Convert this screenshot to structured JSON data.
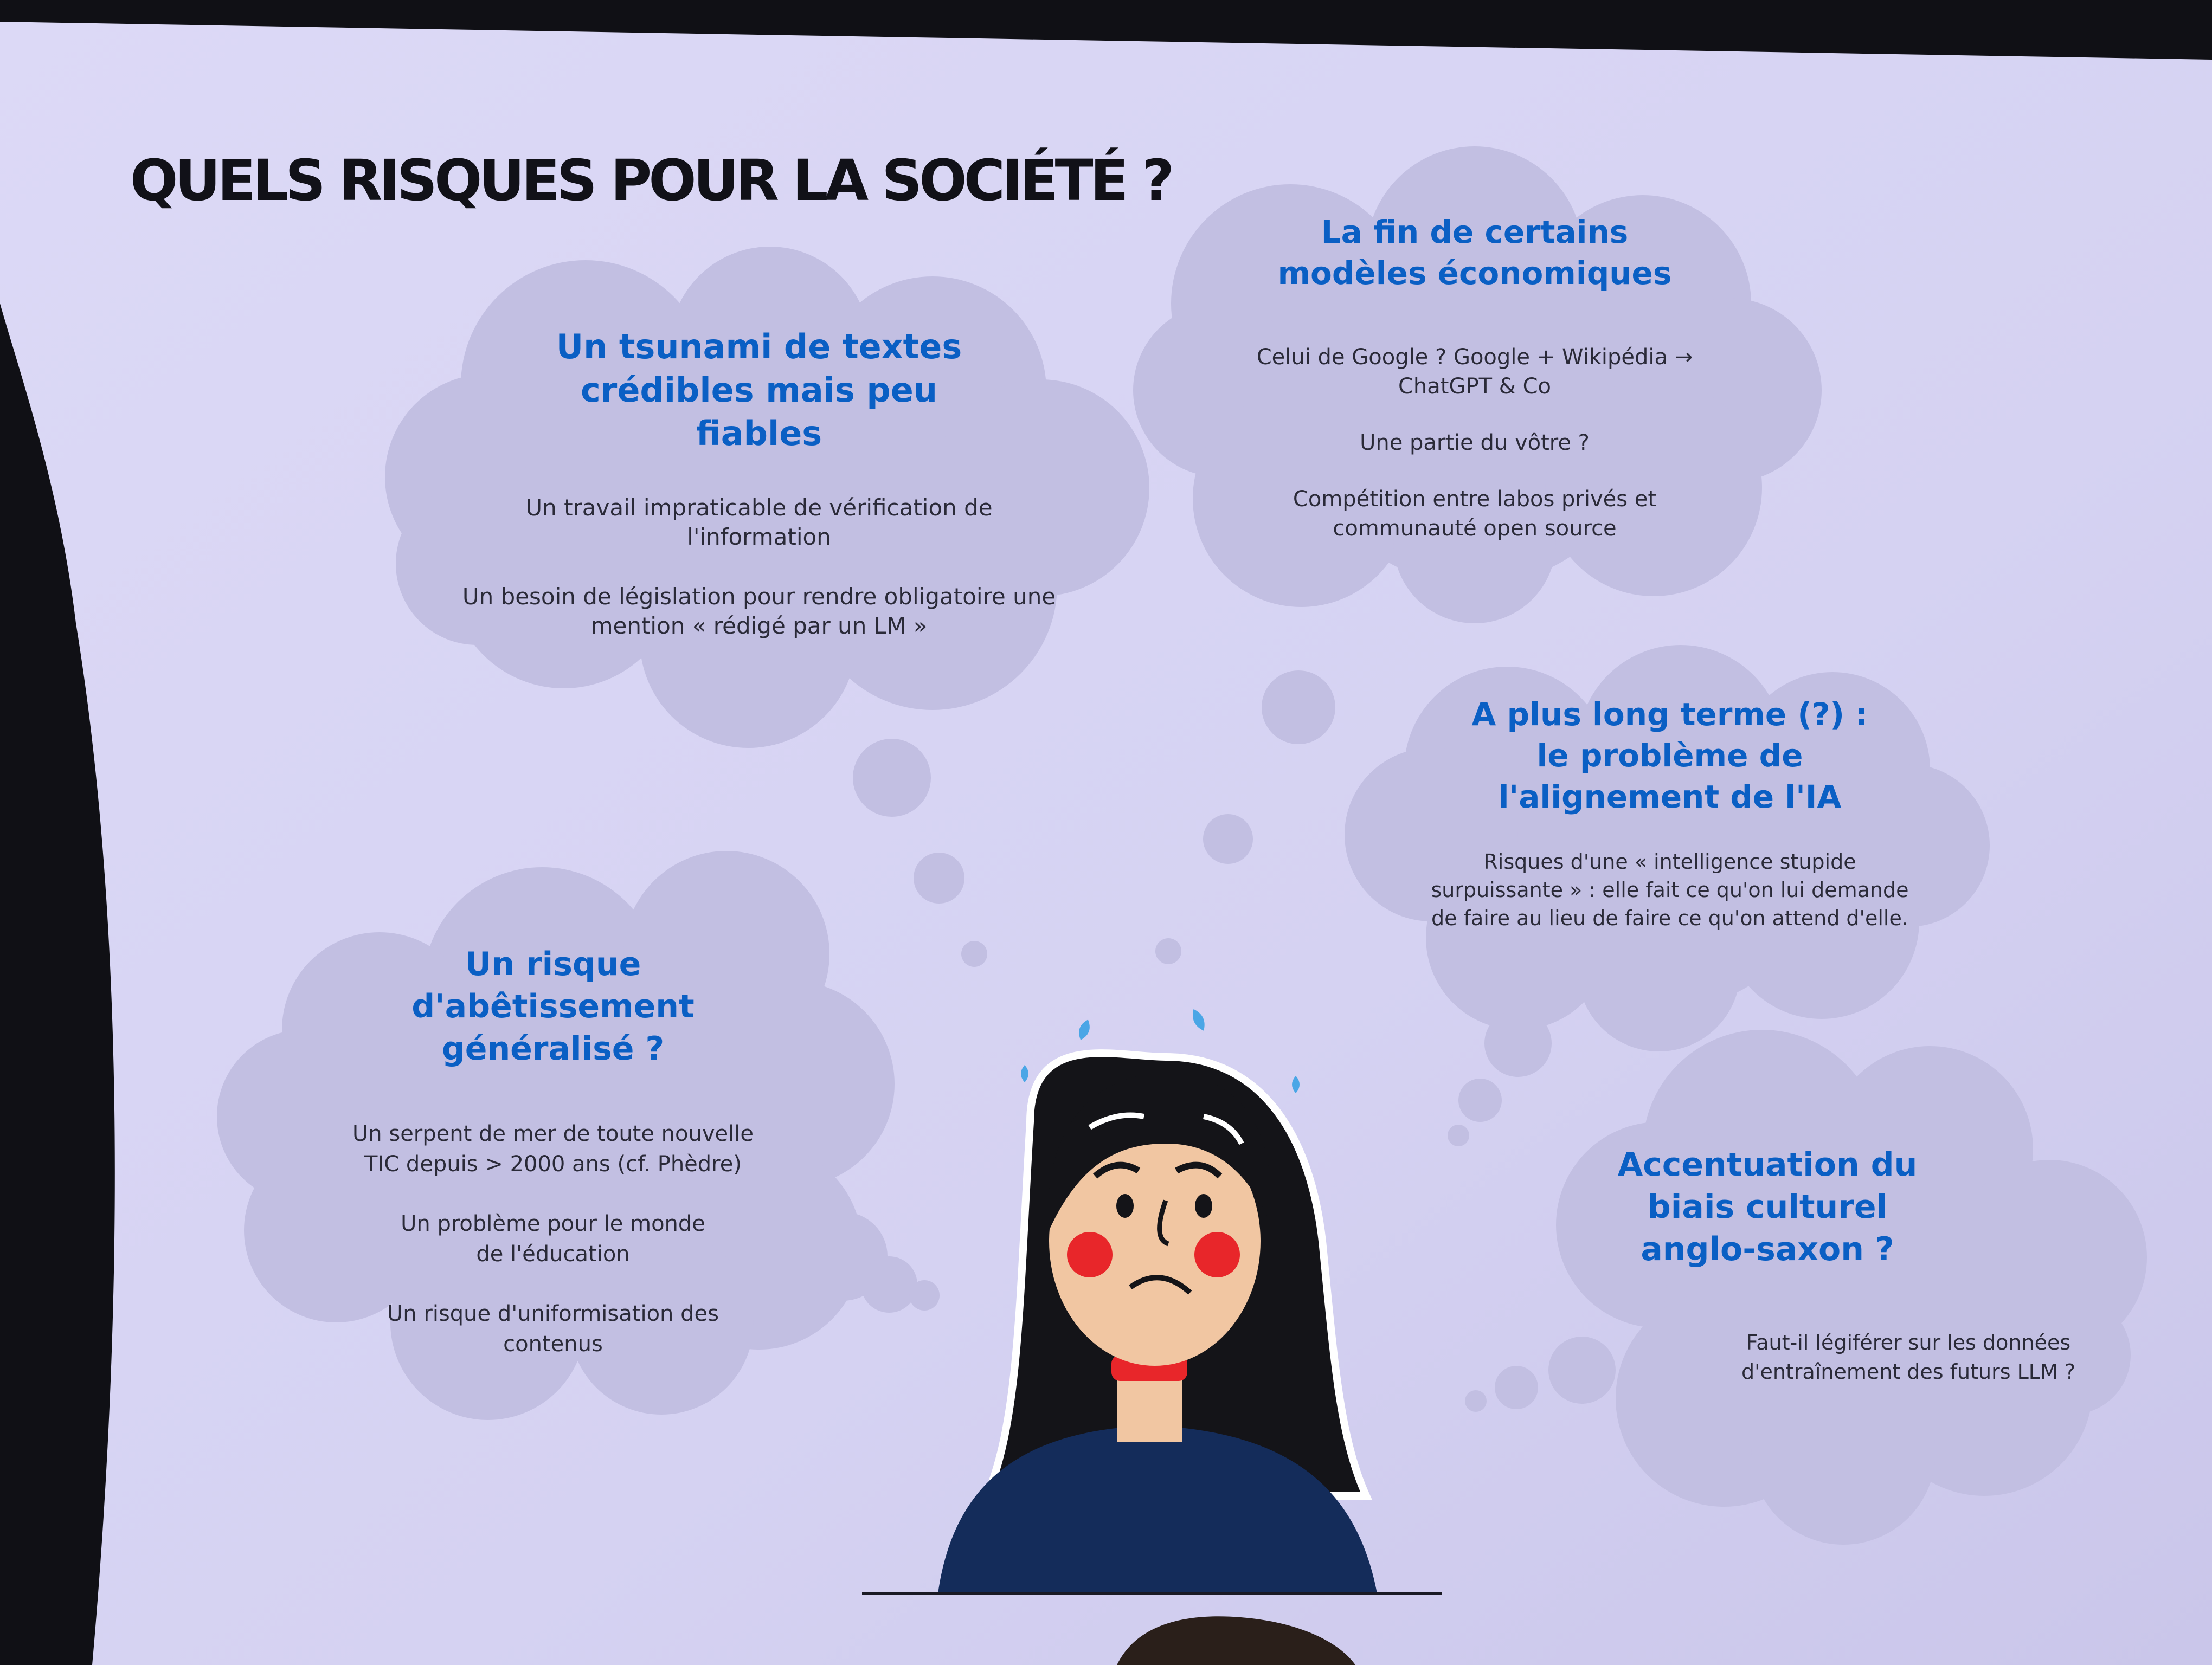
{
  "colors": {
    "slide_background": "#d6d3f3",
    "bubble_fill": "#c2bfe2",
    "title_text": "#111118",
    "bubble_heading": "#0a5fc4",
    "bubble_body": "#2a2a38",
    "hair": "#141418",
    "skin": "#f1c6a2",
    "cheeks": "#e8262a",
    "collar": "#e8262a",
    "sweater": "#142c5a"
  },
  "slide": {
    "title": "QUELS RISQUES POUR LA SOCIÉTÉ ?"
  },
  "bubbles": {
    "tsunami": {
      "title": "Un tsunami de textes crédibles mais peu fiables",
      "lines": [
        "Un travail impraticable de vérification de l'information",
        "Un besoin de législation pour rendre obligatoire une mention « rédigé par un LM »"
      ]
    },
    "economie": {
      "title": "La fin de certains modèles économiques",
      "lines": [
        "Celui de Google ? Google + Wikipédia → ChatGPT & Co",
        "Une partie du vôtre ?",
        "Compétition entre labos privés et communauté open source"
      ]
    },
    "alignement": {
      "title": "A plus long terme (?) : le problème de l'alignement de l'IA",
      "lines": [
        "Risques d'une « intelligence stupide surpuissante » : elle fait ce qu'on lui demande de faire au lieu de faire ce qu'on attend d'elle."
      ]
    },
    "abetissement": {
      "title": "Un risque d'abêtissement généralisé ?",
      "lines": [
        "Un serpent de mer de toute nouvelle TIC depuis > 2000 ans (cf. Phèdre)",
        "Un problème pour le monde de l'éducation",
        "Un risque d'uniformisation des contenus"
      ]
    },
    "biais": {
      "title": "Accentuation du biais culturel anglo-saxon ?",
      "lines": [
        "Faut-il légiférer sur les données d'entraînement des futurs LLM ?"
      ]
    }
  }
}
